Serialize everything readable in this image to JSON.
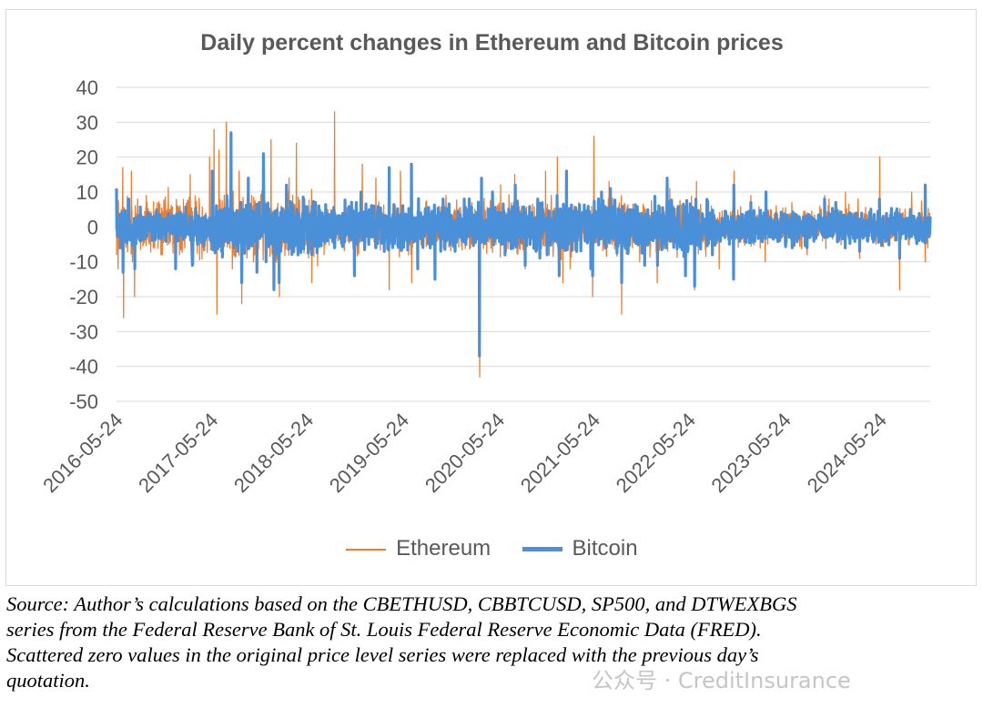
{
  "chart_data": {
    "type": "line",
    "title": "Daily percent changes in Ethereum and Bitcoin prices",
    "xlabel": "",
    "ylabel": "",
    "ylim": [
      -50,
      40
    ],
    "yticks": [
      "40",
      "30",
      "20",
      "10",
      "0",
      "-10",
      "-20",
      "-30",
      "-40",
      "-50"
    ],
    "xlim": [
      "2016-05-24",
      "2024-11-30"
    ],
    "xticks": [
      "2016-05-24",
      "2017-05-24",
      "2018-05-24",
      "2019-05-24",
      "2020-05-24",
      "2021-05-24",
      "2022-05-24",
      "2023-05-24",
      "2024-05-24"
    ],
    "grid": true,
    "legend": "bottom",
    "series": [
      {
        "name": "Ethereum",
        "color": "#ED7D31",
        "x": [
          "2016-05-30",
          "2016-06-17",
          "2016-06-20",
          "2016-07-20",
          "2016-08-01",
          "2016-09-15",
          "2016-11-10",
          "2017-01-15",
          "2017-03-02",
          "2017-03-15",
          "2017-05-15",
          "2017-06-01",
          "2017-06-12",
          "2017-06-20",
          "2017-07-18",
          "2017-08-10",
          "2017-09-05",
          "2017-09-15",
          "2017-10-30",
          "2017-12-10",
          "2018-01-05",
          "2018-01-16",
          "2018-02-06",
          "2018-03-15",
          "2018-04-12",
          "2018-06-10",
          "2018-09-05",
          "2018-11-20",
          "2018-12-20",
          "2019-02-10",
          "2019-04-02",
          "2019-05-15",
          "2019-06-27",
          "2019-09-24",
          "2019-11-05",
          "2020-01-15",
          "2020-03-12",
          "2020-03-13",
          "2020-06-01",
          "2020-07-25",
          "2020-09-03",
          "2020-11-20",
          "2021-01-04",
          "2021-01-25",
          "2021-02-22",
          "2021-05-19",
          "2021-05-24",
          "2021-07-21",
          "2021-09-07",
          "2021-11-15",
          "2022-01-21",
          "2022-03-10",
          "2022-05-10",
          "2022-06-13",
          "2022-06-20",
          "2022-09-15",
          "2022-11-09",
          "2022-11-11",
          "2023-01-14",
          "2023-03-10",
          "2023-03-13",
          "2023-06-20",
          "2023-08-17",
          "2023-10-23",
          "2023-11-09",
          "2024-01-11",
          "2024-02-28",
          "2024-03-05",
          "2024-05-21",
          "2024-08-05",
          "2024-09-20",
          "2024-11-11"
        ],
        "values": [
          -12,
          17,
          -26,
          16,
          -20,
          9,
          -8,
          5,
          15,
          -11,
          20,
          28,
          -25,
          22,
          30,
          -12,
          16,
          -22,
          -10,
          20,
          25,
          -18,
          -20,
          14,
          24,
          -16,
          33,
          -12,
          18,
          14,
          -18,
          16,
          -16,
          -14,
          9,
          8,
          -20,
          -43,
          12,
          15,
          -12,
          16,
          20,
          -16,
          -12,
          -20,
          26,
          13,
          -25,
          -10,
          -16,
          11,
          -14,
          -18,
          13,
          -12,
          -12,
          16,
          9,
          -10,
          10,
          7,
          -8,
          9,
          8,
          10,
          8,
          -9,
          20,
          -18,
          10,
          -10
        ]
      },
      {
        "name": "Bitcoin",
        "color": "#4A90D9",
        "x": [
          "2016-05-24",
          "2016-06-10",
          "2016-06-18",
          "2016-07-10",
          "2016-08-02",
          "2016-10-25",
          "2017-01-05",
          "2017-03-10",
          "2017-05-25",
          "2017-07-20",
          "2017-08-05",
          "2017-09-15",
          "2017-10-10",
          "2017-11-12",
          "2017-12-07",
          "2017-12-17",
          "2018-01-16",
          "2018-02-05",
          "2018-03-05",
          "2018-06-10",
          "2018-09-05",
          "2018-11-20",
          "2018-12-15",
          "2019-04-02",
          "2019-06-26",
          "2019-07-20",
          "2019-09-24",
          "2019-10-25",
          "2019-12-10",
          "2020-01-14",
          "2020-03-12",
          "2020-03-20",
          "2020-05-01",
          "2020-07-27",
          "2020-09-03",
          "2020-10-21",
          "2020-11-26",
          "2021-01-03",
          "2021-01-11",
          "2021-02-08",
          "2021-05-12",
          "2021-05-19",
          "2021-06-22",
          "2021-07-26",
          "2021-09-07",
          "2021-12-04",
          "2022-01-22",
          "2022-02-28",
          "2022-05-09",
          "2022-06-13",
          "2022-06-18",
          "2022-08-20",
          "2022-11-09",
          "2022-11-10",
          "2023-01-14",
          "2023-03-13",
          "2023-06-21",
          "2023-08-17",
          "2023-10-23",
          "2023-12-05",
          "2024-01-10",
          "2024-03-05",
          "2024-05-20",
          "2024-08-05",
          "2024-09-15",
          "2024-11-11",
          "2024-11-30"
        ],
        "values": [
          11,
          -6,
          -13,
          8,
          -12,
          5,
          -12,
          -11,
          16,
          9,
          27,
          -16,
          14,
          -13,
          21,
          -10,
          -18,
          -16,
          12,
          -8,
          -6,
          -14,
          10,
          17,
          18,
          -12,
          -15,
          8,
          -7,
          8,
          -37,
          14,
          10,
          12,
          -11,
          8,
          -8,
          9,
          -14,
          16,
          -12,
          -14,
          10,
          11,
          -16,
          -11,
          -11,
          14,
          -14,
          -17,
          8,
          -8,
          -15,
          12,
          7,
          10,
          -6,
          -6,
          8,
          7,
          -6,
          -7,
          8,
          -9,
          5,
          12,
          3
        ]
      }
    ]
  },
  "caption": {
    "line1": "Source: Author’s calculations based on the CBETHUSD, CBBTCUSD, SP500, and DTWEXBGS",
    "line2": "series from the Federal Reserve Bank of St. Louis Federal Reserve Economic Data (FRED).",
    "line3": "Scattered zero values in the original price level series were replaced with the previous day’s",
    "line4": "quotation."
  },
  "watermark": {
    "text": "公众号 · CreditInsurance"
  }
}
